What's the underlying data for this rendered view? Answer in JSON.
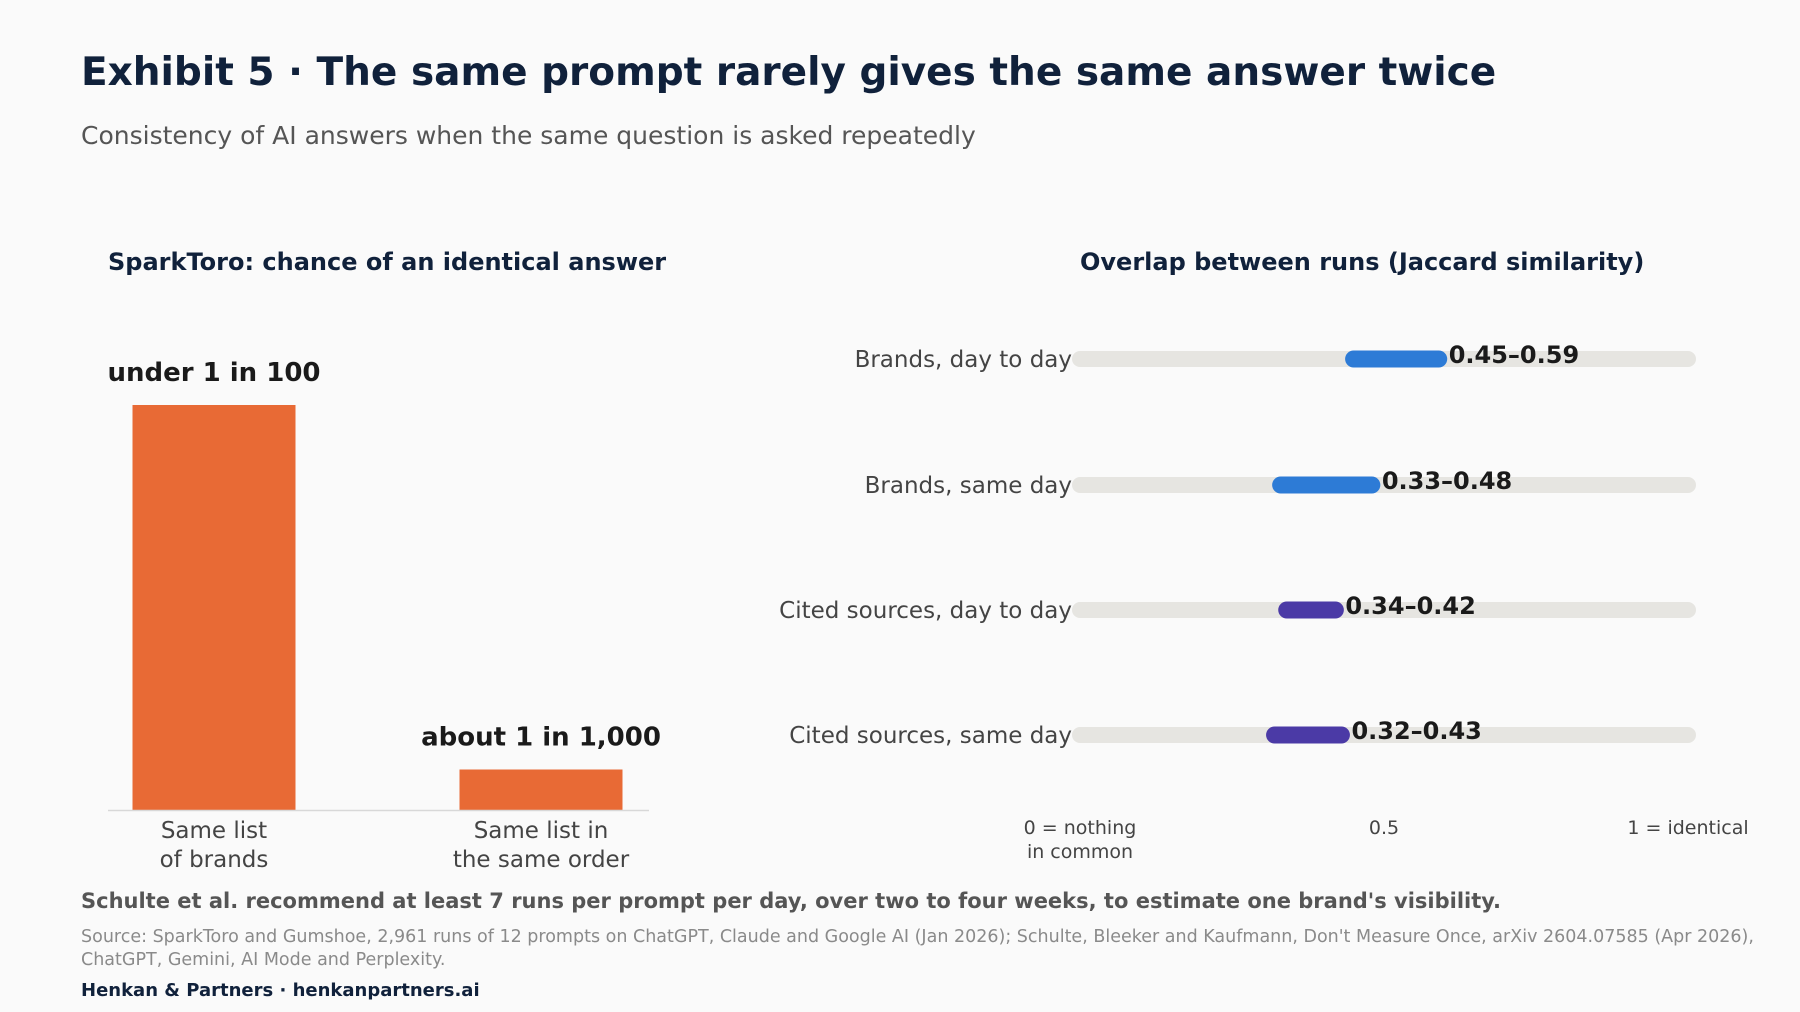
{
  "title": "Exhibit 5 · The same prompt rarely gives the same answer twice",
  "subtitle": "Consistency of AI answers when the same question is asked repeatedly",
  "chart_data": [
    {
      "type": "bar",
      "title": "SparkToro: chance of an identical answer",
      "categories": [
        [
          "Same list",
          "of brands"
        ],
        [
          "Same list in",
          "the same order"
        ]
      ],
      "values": [
        0.01,
        0.001
      ],
      "value_labels": [
        "under 1 in 100",
        "about 1 in 1,000"
      ],
      "color": "#e86a35"
    },
    {
      "type": "range",
      "title": "Overlap between runs (Jaccard similarity)",
      "xlim": [
        0,
        1
      ],
      "ticks": [
        {
          "value": 0,
          "label": [
            "0 = nothing",
            "in common"
          ]
        },
        {
          "value": 0.5,
          "label": [
            "0.5"
          ]
        },
        {
          "value": 1,
          "label": [
            "1 = identical"
          ]
        }
      ],
      "rows": [
        {
          "label": "Brands, day to day",
          "low": 0.45,
          "high": 0.59,
          "value_label": "0.45–0.59",
          "color": "#2d7bd6"
        },
        {
          "label": "Brands, same day",
          "low": 0.33,
          "high": 0.48,
          "value_label": "0.33–0.48",
          "color": "#2d7bd6"
        },
        {
          "label": "Cited sources, day to day",
          "low": 0.34,
          "high": 0.42,
          "value_label": "0.34–0.42",
          "color": "#4b3aa6"
        },
        {
          "label": "Cited sources, same day",
          "low": 0.32,
          "high": 0.43,
          "value_label": "0.32–0.43",
          "color": "#4b3aa6"
        }
      ],
      "track_color": "#e6e5e1"
    }
  ],
  "footnote": "Schulte et al. recommend at least 7 runs per prompt per day, over two to four weeks, to estimate one brand's visibility.",
  "source": "Source: SparkToro and Gumshoe, 2,961 runs of 12 prompts on ChatGPT, Claude and Google AI (Jan 2026); Schulte, Bleeker and Kaufmann, Don't Measure Once, arXiv 2604.07585 (Apr 2026), ChatGPT, Gemini, AI Mode and Perplexity.",
  "brand": "Henkan & Partners · henkanpartners.ai"
}
